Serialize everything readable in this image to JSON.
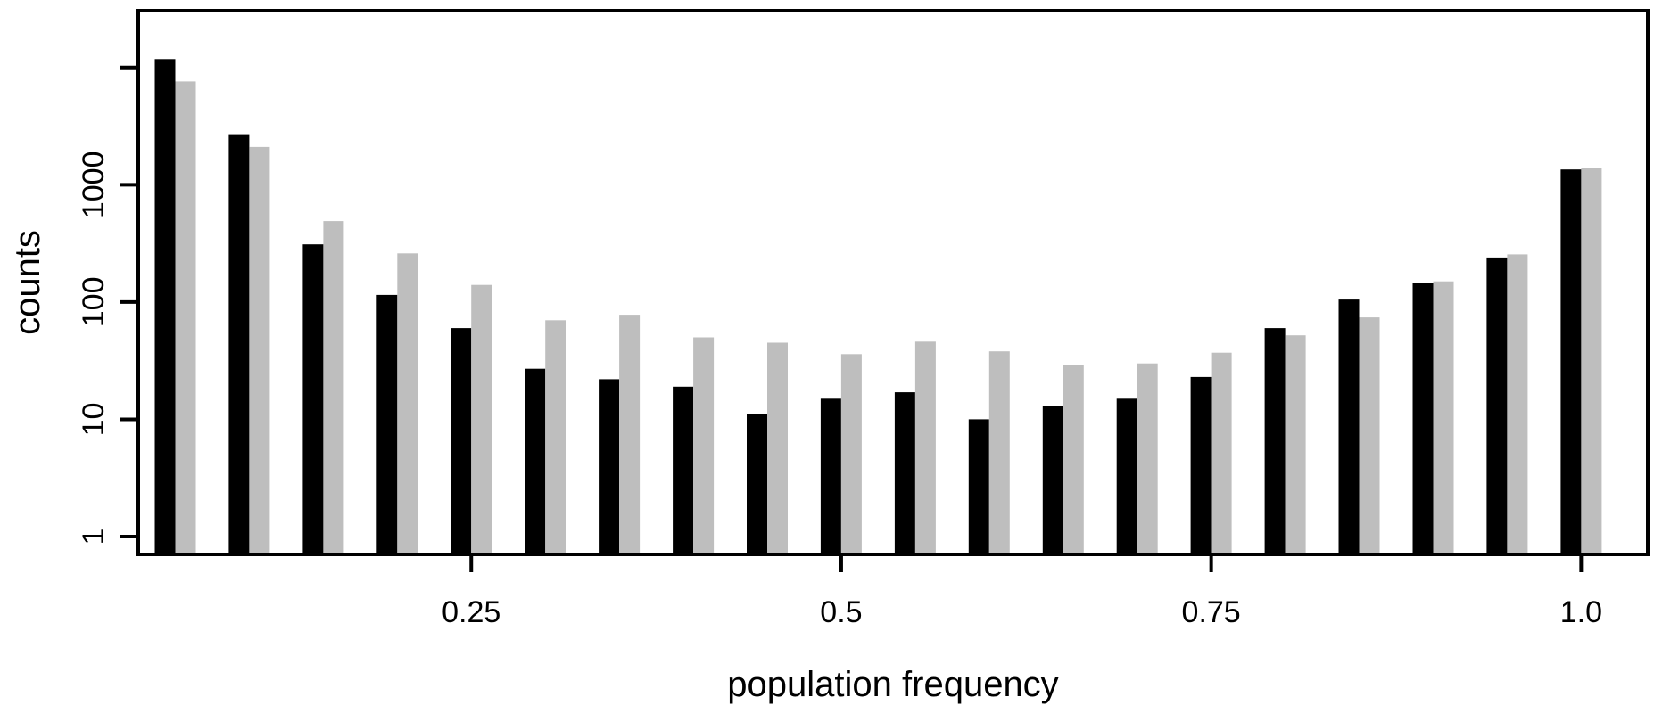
{
  "chart_data": {
    "type": "bar",
    "xlabel": "population frequency",
    "ylabel": "counts",
    "y_scale": "log",
    "ylim": [
      1,
      30000
    ],
    "xlim": [
      0.025,
      1.045
    ],
    "grid": false,
    "legend": "none",
    "x_ticks": [
      {
        "value": 0.25,
        "label": "0.25"
      },
      {
        "value": 0.5,
        "label": "0.5"
      },
      {
        "value": 0.75,
        "label": "0.75"
      },
      {
        "value": 1.0,
        "label": "1.0"
      }
    ],
    "y_ticks": [
      {
        "value": 1,
        "label": "1"
      },
      {
        "value": 10,
        "label": "10"
      },
      {
        "value": 100,
        "label": "100"
      },
      {
        "value": 1000,
        "label": "1000"
      },
      {
        "value": 10000,
        "label": ""
      }
    ],
    "x": [
      0.05,
      0.1,
      0.15,
      0.2,
      0.25,
      0.3,
      0.35,
      0.4,
      0.45,
      0.5,
      0.55,
      0.6,
      0.65,
      0.7,
      0.75,
      0.8,
      0.85,
      0.9,
      0.95,
      1.0
    ],
    "series": [
      {
        "color": "#000000",
        "values": [
          11800,
          2700,
          310,
          115,
          60,
          27,
          22,
          19,
          11,
          15,
          17,
          10,
          13,
          15,
          23,
          60,
          105,
          145,
          240,
          1350
        ]
      },
      {
        "color": "#bebebe",
        "values": [
          7600,
          2100,
          490,
          260,
          140,
          70,
          78,
          50,
          45,
          36,
          46,
          38,
          29,
          30,
          37,
          52,
          74,
          150,
          255,
          1400
        ]
      }
    ]
  }
}
